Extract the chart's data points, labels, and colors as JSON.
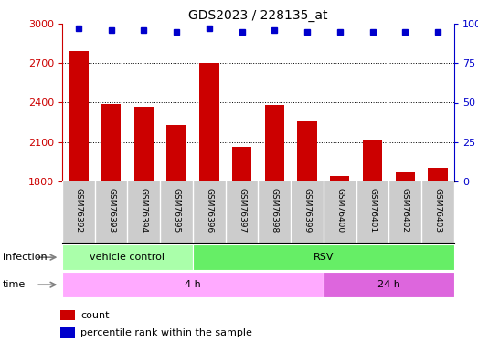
{
  "title": "GDS2023 / 228135_at",
  "samples": [
    "GSM76392",
    "GSM76393",
    "GSM76394",
    "GSM76395",
    "GSM76396",
    "GSM76397",
    "GSM76398",
    "GSM76399",
    "GSM76400",
    "GSM76401",
    "GSM76402",
    "GSM76403"
  ],
  "counts": [
    2790,
    2390,
    2370,
    2230,
    2700,
    2060,
    2380,
    2260,
    1840,
    2110,
    1870,
    1900
  ],
  "percentile_ranks": [
    97,
    96,
    96,
    95,
    97,
    95,
    96,
    95,
    95,
    95,
    95,
    95
  ],
  "ylim_left": [
    1800,
    3000
  ],
  "ylim_right": [
    0,
    100
  ],
  "yticks_left": [
    1800,
    2100,
    2400,
    2700,
    3000
  ],
  "yticks_right": [
    0,
    25,
    50,
    75,
    100
  ],
  "bar_color": "#cc0000",
  "dot_color": "#0000cc",
  "infection_labels": [
    {
      "text": "vehicle control",
      "start": 0,
      "end": 4,
      "color": "#aaffaa"
    },
    {
      "text": "RSV",
      "start": 4,
      "end": 12,
      "color": "#66ee66"
    }
  ],
  "time_labels": [
    {
      "text": "4 h",
      "start": 0,
      "end": 8,
      "color": "#ffaaff"
    },
    {
      "text": "24 h",
      "start": 8,
      "end": 12,
      "color": "#dd66dd"
    }
  ],
  "infection_row_label": "infection",
  "time_row_label": "time",
  "legend_count_label": "count",
  "legend_percentile_label": "percentile rank within the sample",
  "sample_bg_color": "#cccccc",
  "title_fontsize": 10,
  "tick_fontsize": 8,
  "label_fontsize": 8,
  "annotation_fontsize": 8
}
